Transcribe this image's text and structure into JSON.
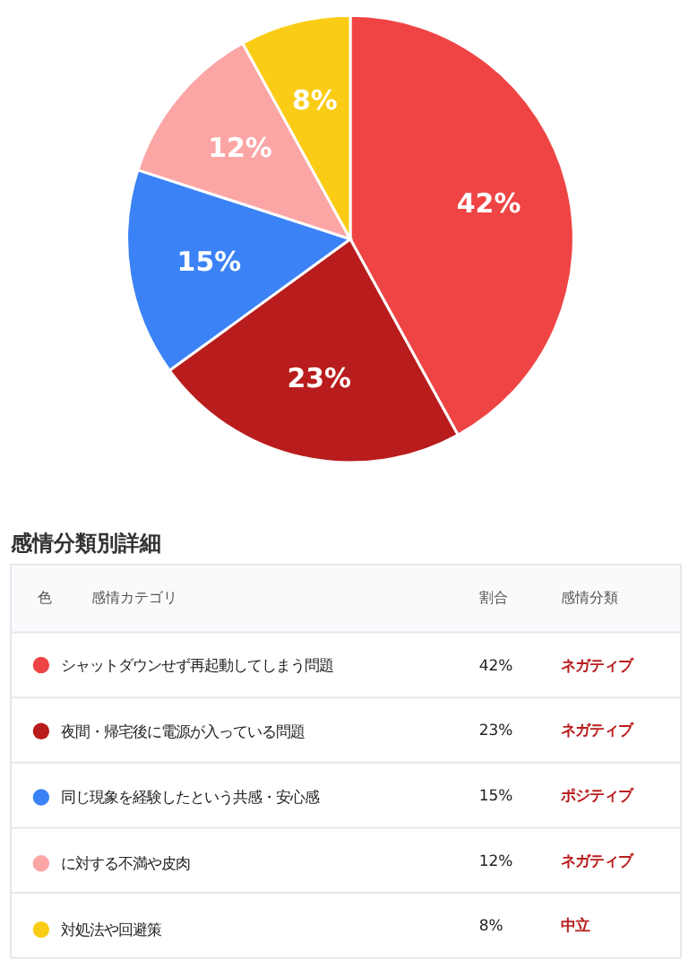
{
  "chart_data": {
    "type": "pie",
    "title": "感情分類別詳細",
    "categories": [
      "シャットダウンせず再起動してしまう問題",
      "夜間・帰宅後に電源が入っている問題",
      "同じ現象を経験したという共感・安心感",
      "に対する不満や皮肉",
      "対処法や回避策"
    ],
    "values": [
      42,
      23,
      15,
      12,
      8
    ],
    "colors": [
      "#ef4444",
      "#b91c1c",
      "#3b82f6",
      "#fca5a5",
      "#facc15"
    ],
    "value_labels": [
      "42%",
      "23%",
      "15%",
      "12%",
      "8%"
    ],
    "legend": "bottom",
    "annotations": [
      "色",
      "感情カテゴリ",
      "割合",
      "感情分類",
      "ネガティブ",
      "ネガティブ",
      "ポジティブ",
      "ネガティブ",
      "中立"
    ]
  }
}
